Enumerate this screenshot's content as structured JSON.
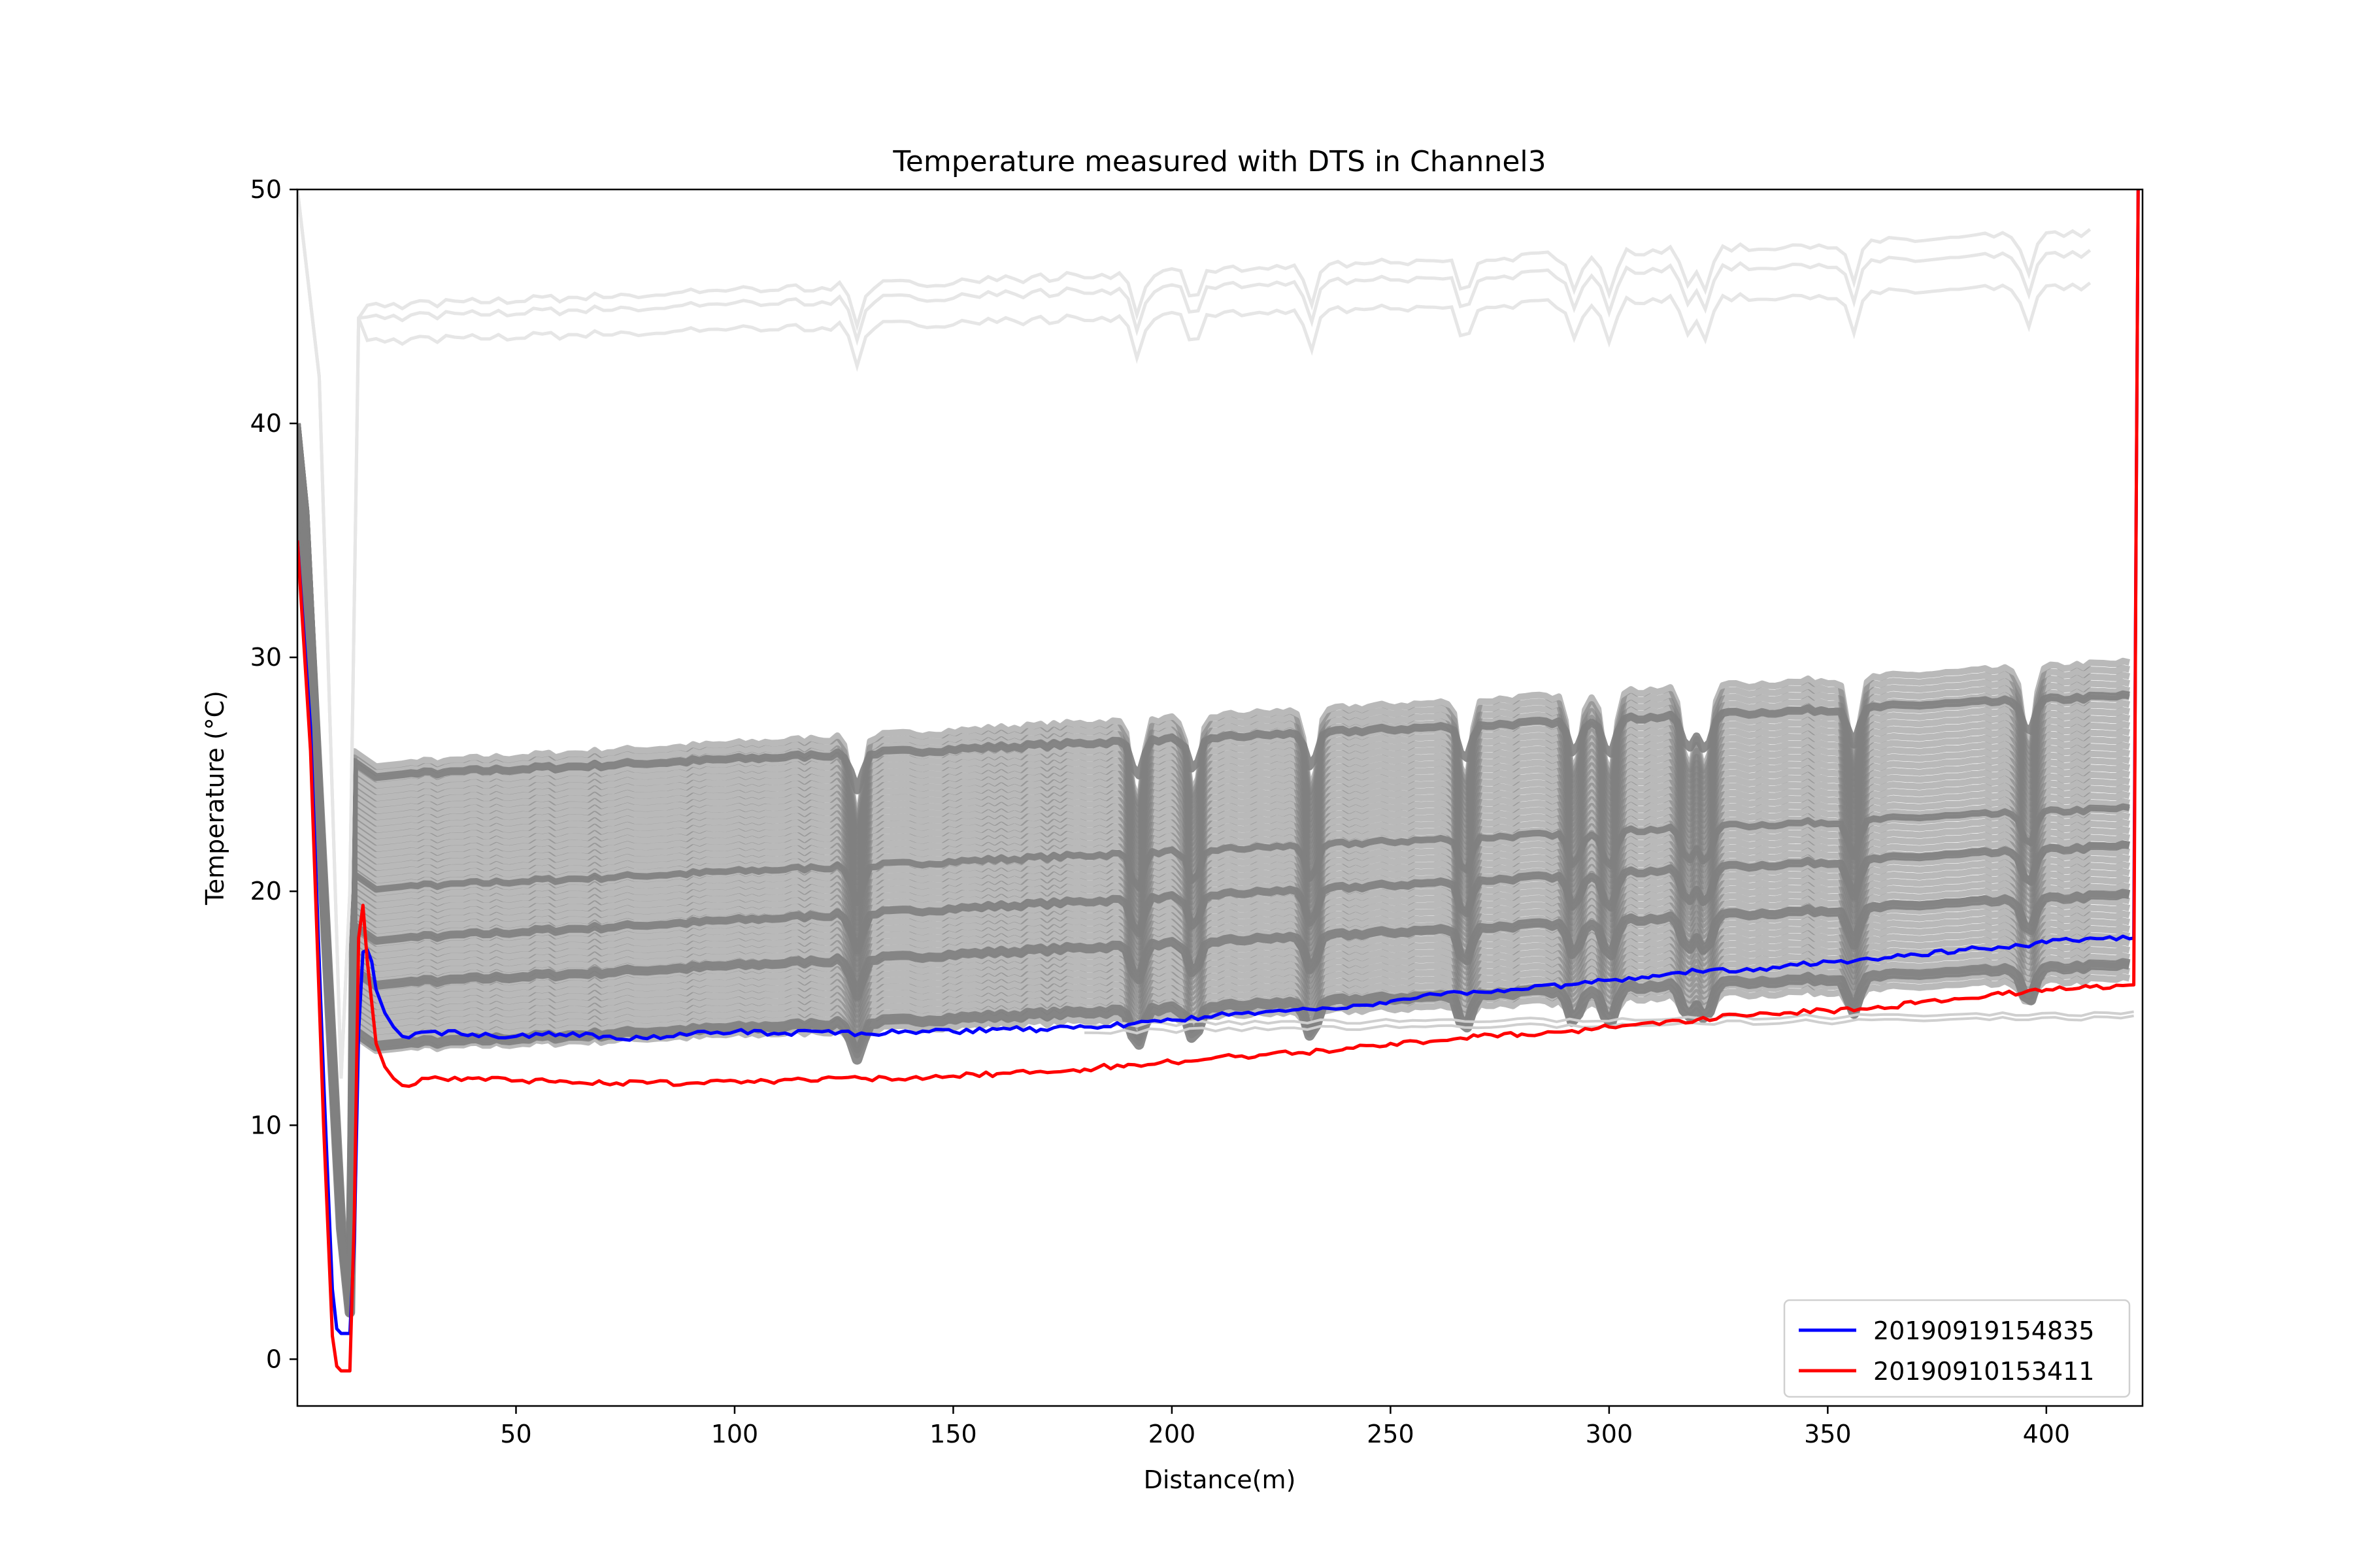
{
  "chart_data": {
    "type": "line",
    "title": "Temperature measured with DTS in Channel3",
    "xlabel": "Distance(m)",
    "ylabel": "Temperature (°C)",
    "xlim": [
      0,
      422
    ],
    "ylim": [
      -2,
      50
    ],
    "xticks": [
      50,
      100,
      150,
      200,
      250,
      300,
      350,
      400
    ],
    "yticks": [
      0,
      10,
      20,
      30,
      40,
      50
    ],
    "grid": false,
    "legend_position": "lower-right",
    "background_color": "#808080",
    "series": [
      {
        "name": "20190919154835",
        "color": "#0000ff",
        "x": [
          0,
          3,
          6,
          8,
          9,
          10,
          12,
          13,
          14,
          15,
          16,
          17,
          18,
          20,
          22,
          24,
          30,
          40,
          50,
          60,
          70,
          80,
          90,
          100,
          110,
          120,
          130,
          140,
          150,
          160,
          170,
          180,
          190,
          200,
          210,
          220,
          230,
          240,
          250,
          260,
          270,
          280,
          290,
          300,
          310,
          320,
          330,
          340,
          350,
          360,
          370,
          380,
          390,
          400,
          410,
          420,
          420.5,
          421
        ],
        "y": [
          35,
          27,
          12,
          3,
          1.3,
          1.1,
          1.1,
          5,
          14,
          17.4,
          17.5,
          17,
          15.8,
          14.8,
          14.2,
          13.8,
          14.0,
          13.9,
          13.8,
          13.9,
          13.8,
          13.7,
          13.9,
          14.0,
          13.9,
          14.0,
          13.9,
          14.0,
          14.0,
          14.1,
          14.1,
          14.2,
          14.3,
          14.5,
          14.7,
          14.8,
          15.0,
          15.0,
          15.3,
          15.6,
          15.7,
          15.8,
          16.0,
          16.2,
          16.4,
          16.6,
          16.6,
          16.8,
          17.0,
          17.1,
          17.3,
          17.5,
          17.6,
          17.8,
          18.0,
          18.0,
          35,
          50
        ]
      },
      {
        "name": "20190910153411",
        "color": "#ff0000",
        "x": [
          0,
          3,
          6,
          8,
          9,
          10,
          11,
          12,
          13,
          14,
          15,
          16,
          18,
          20,
          22,
          24,
          30,
          40,
          50,
          60,
          70,
          80,
          90,
          100,
          110,
          120,
          130,
          140,
          150,
          160,
          170,
          180,
          190,
          200,
          210,
          220,
          230,
          240,
          250,
          260,
          270,
          280,
          290,
          300,
          310,
          320,
          330,
          340,
          350,
          360,
          370,
          380,
          390,
          400,
          410,
          420,
          420.5,
          421
        ],
        "y": [
          35,
          26,
          10,
          1,
          -0.3,
          -0.5,
          -0.5,
          -0.5,
          6,
          18,
          19.4,
          17,
          13.5,
          12.5,
          12.0,
          11.7,
          12.0,
          12.0,
          11.9,
          11.9,
          11.8,
          11.8,
          11.8,
          11.9,
          11.9,
          12.0,
          12.0,
          12.0,
          12.1,
          12.2,
          12.3,
          12.4,
          12.6,
          12.7,
          12.9,
          13.0,
          13.1,
          13.3,
          13.5,
          13.6,
          13.8,
          13.9,
          14.0,
          14.2,
          14.4,
          14.5,
          14.7,
          14.8,
          14.9,
          15.0,
          15.2,
          15.4,
          15.6,
          15.8,
          15.9,
          16.0,
          35,
          50
        ]
      }
    ]
  }
}
